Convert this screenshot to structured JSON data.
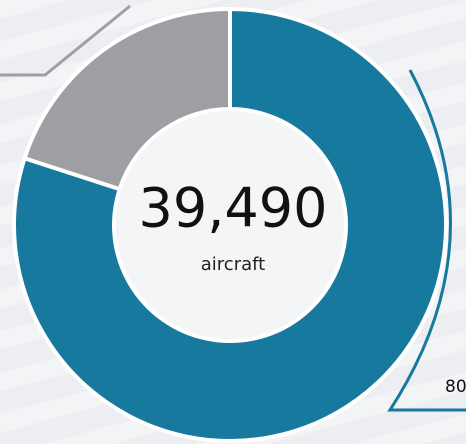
{
  "chart_data": {
    "type": "donut",
    "center_value": "39,490",
    "center_label": "aircraft",
    "categories": [
      null,
      null
    ],
    "values": [
      80,
      20
    ],
    "value_labels": [
      "80",
      null
    ],
    "colors": [
      "#17799e",
      "#9d9fa2"
    ]
  }
}
